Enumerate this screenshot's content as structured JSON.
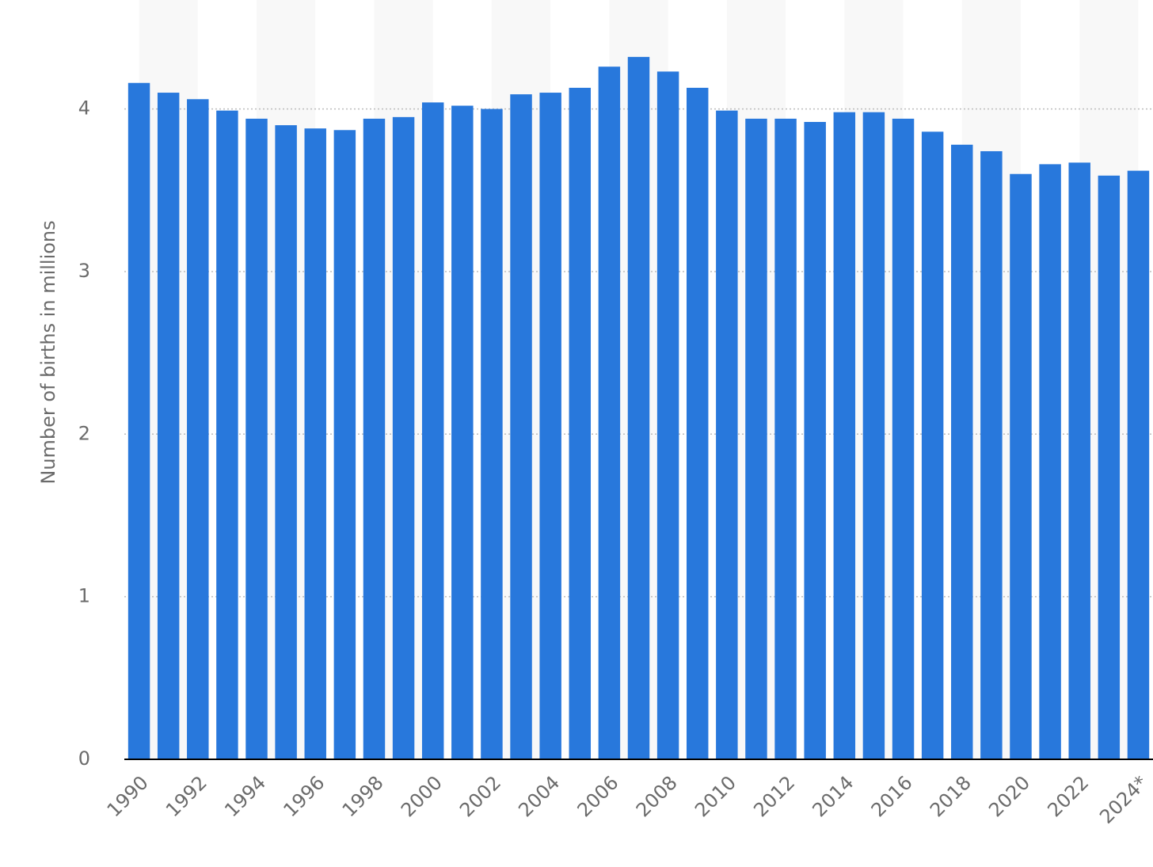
{
  "chart_data": {
    "type": "bar",
    "y_axis_label": "Number of births in millions",
    "categories": [
      "1990",
      null,
      "1992",
      null,
      "1994",
      null,
      "1996",
      null,
      "1998",
      null,
      "2000",
      null,
      "2002",
      null,
      "2004",
      null,
      "2006",
      null,
      "2008",
      null,
      "2010",
      null,
      "2012",
      null,
      "2014",
      null,
      "2016",
      null,
      "2018",
      null,
      "2020",
      null,
      "2022",
      null,
      "2024*"
    ],
    "values": [
      4.16,
      4.1,
      4.06,
      3.99,
      3.94,
      3.9,
      3.88,
      3.87,
      3.94,
      3.95,
      4.04,
      4.02,
      4.0,
      4.09,
      4.1,
      4.13,
      4.26,
      4.32,
      4.23,
      4.13,
      3.99,
      3.94,
      3.94,
      3.92,
      3.98,
      3.98,
      3.94,
      3.86,
      3.78,
      3.74,
      3.6,
      3.66,
      3.67,
      3.59,
      3.62
    ],
    "color": "#2878dc",
    "ylim": [
      0,
      4.67
    ],
    "yticks": [
      0,
      1,
      2,
      3,
      4
    ],
    "grid": true
  }
}
